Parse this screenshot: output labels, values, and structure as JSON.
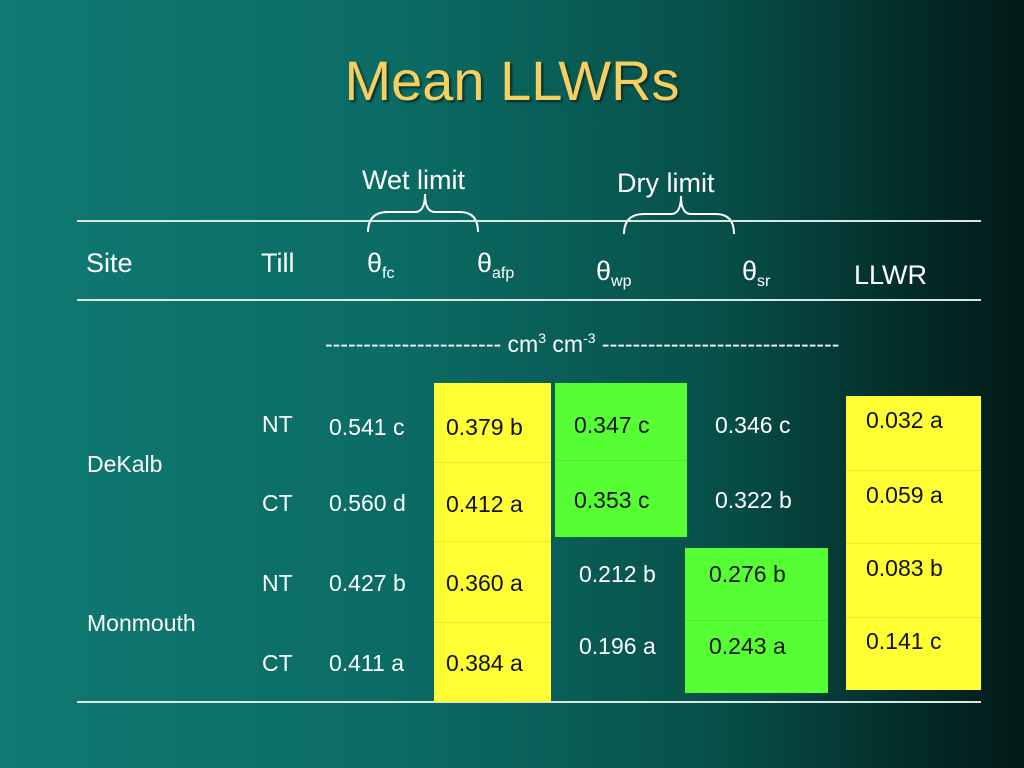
{
  "title": "Mean LLWRs",
  "braces": {
    "wet_label": "Wet limit",
    "dry_label": "Dry limit"
  },
  "header": {
    "site": "Site",
    "till": "Till",
    "theta": "θ",
    "fc": "fc",
    "afp": "afp",
    "wp": "wp",
    "sr": "sr",
    "llwr": "LLWR"
  },
  "units": {
    "dashes_left": "----------------------- cm",
    "exp1": "3",
    "mid": " cm",
    "exp2": "-3",
    "dashes_right": " -------------------------------"
  },
  "sites": [
    "DeKalb",
    "Monmouth"
  ],
  "rows": [
    {
      "till": "NT",
      "fc": "0.541 c",
      "afp": "0.379 b",
      "wp": "0.347 c",
      "sr": "0.346 c",
      "llwr": "0.032 a"
    },
    {
      "till": "CT",
      "fc": "0.560 d",
      "afp": "0.412 a",
      "wp": "0.353 c",
      "sr": "0.322 b",
      "llwr": "0.059 a"
    },
    {
      "till": "NT",
      "fc": "0.427 b",
      "afp": "0.360 a",
      "wp": "0.212 b",
      "sr": "0.276 b",
      "llwr": "0.083 b"
    },
    {
      "till": "CT",
      "fc": "0.411 a",
      "afp": "0.384 a",
      "wp": "0.196 a",
      "sr": "0.243 a",
      "llwr": "0.141 c"
    }
  ],
  "highlight_colors": {
    "yellow": "#ffff33",
    "green": "#55ff33"
  }
}
